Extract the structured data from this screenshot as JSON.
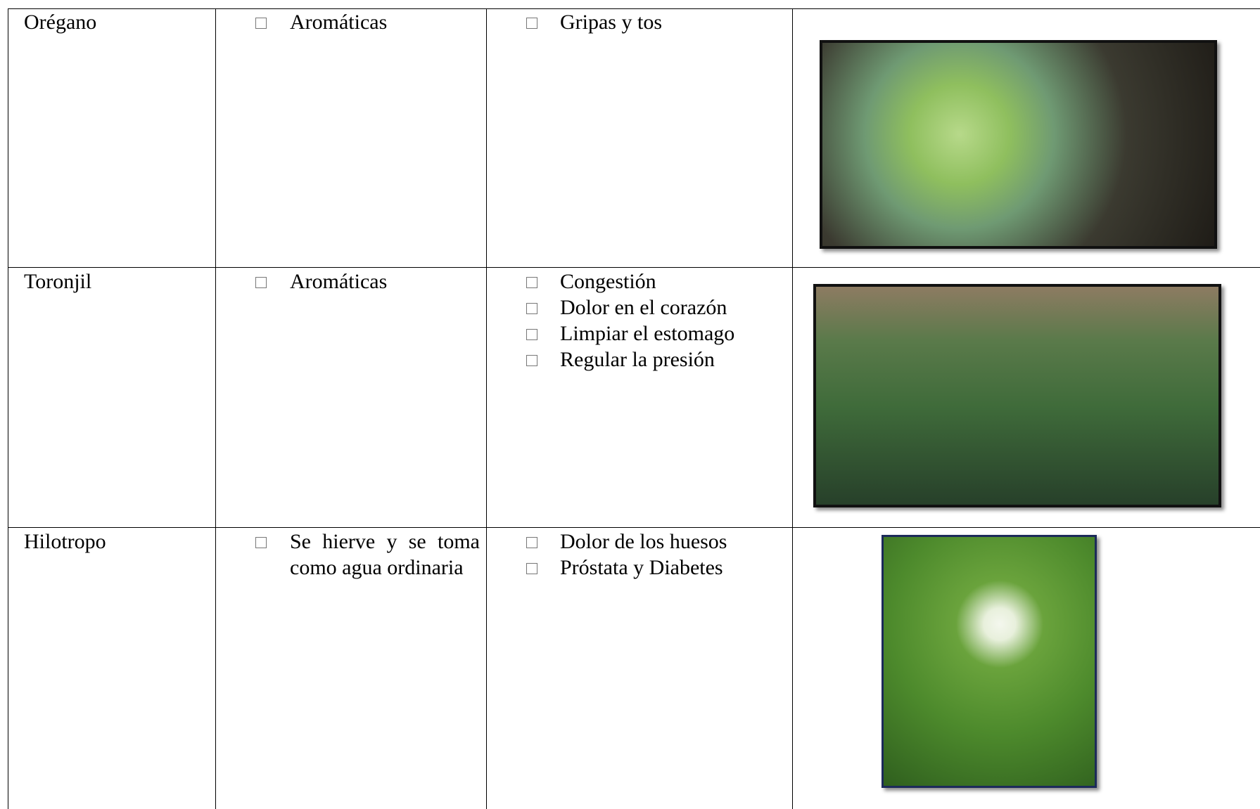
{
  "table": {
    "rows": [
      {
        "name": "Orégano",
        "uses": [
          "Aromáticas"
        ],
        "ailments": [
          "Gripas y tos"
        ]
      },
      {
        "name": "Toronjil",
        "uses": [
          "Aromáticas"
        ],
        "ailments": [
          "Congestión",
          "Dolor en el corazón",
          "Limpiar el estomago",
          "Regular la presión"
        ]
      },
      {
        "name": "Hilotropo",
        "uses": [
          "Se hierve y se toma como agua ordinaria"
        ],
        "ailments": [
          "Dolor de los huesos",
          "Próstata y Diabetes"
        ]
      }
    ]
  }
}
